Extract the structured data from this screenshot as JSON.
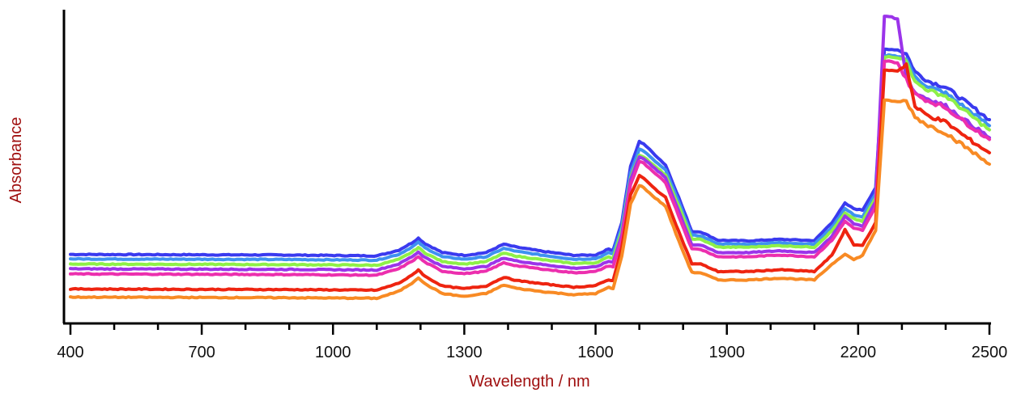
{
  "chart_data": {
    "type": "line",
    "title": "",
    "xlabel": "Wavelength / nm",
    "ylabel": "Absorbance",
    "label_color": "#a01010",
    "xlim": [
      400,
      2500
    ],
    "ylim": [
      0,
      1
    ],
    "x_ticks": [
      400,
      700,
      1000,
      1300,
      1600,
      1900,
      2200,
      2500
    ],
    "x_minor_step": 100,
    "y_tick_labels": false,
    "grid": false,
    "legend": "none",
    "x": [
      400,
      900,
      1100,
      1150,
      1180,
      1195,
      1210,
      1250,
      1300,
      1350,
      1390,
      1420,
      1480,
      1550,
      1600,
      1630,
      1640,
      1660,
      1680,
      1700,
      1710,
      1730,
      1760,
      1790,
      1820,
      1840,
      1880,
      1950,
      2020,
      2100,
      2140,
      2170,
      2190,
      2210,
      2240,
      2260,
      2270,
      2290,
      2310,
      2330,
      2360,
      2400,
      2450,
      2500
    ],
    "series": [
      {
        "color": "#3a3aef",
        "values": [
          0.208,
          0.206,
          0.203,
          0.222,
          0.246,
          0.262,
          0.244,
          0.214,
          0.205,
          0.214,
          0.242,
          0.232,
          0.218,
          0.205,
          0.206,
          0.226,
          0.222,
          0.315,
          0.5,
          0.583,
          0.576,
          0.547,
          0.505,
          0.397,
          0.284,
          0.283,
          0.255,
          0.253,
          0.258,
          0.254,
          0.314,
          0.378,
          0.36,
          0.355,
          0.43,
          0.89,
          0.89,
          0.888,
          0.875,
          0.815,
          0.784,
          0.764,
          0.71,
          0.656
        ]
      },
      {
        "color": "#3e92f0",
        "values": [
          0.193,
          0.191,
          0.189,
          0.208,
          0.232,
          0.248,
          0.23,
          0.2,
          0.192,
          0.2,
          0.228,
          0.218,
          0.205,
          0.192,
          0.194,
          0.213,
          0.21,
          0.3,
          0.48,
          0.558,
          0.552,
          0.525,
          0.488,
          0.382,
          0.271,
          0.27,
          0.243,
          0.242,
          0.247,
          0.242,
          0.298,
          0.36,
          0.34,
          0.332,
          0.41,
          0.866,
          0.87,
          0.866,
          0.86,
          0.796,
          0.766,
          0.744,
          0.69,
          0.636
        ]
      },
      {
        "color": "#8ef048",
        "values": [
          0.176,
          0.174,
          0.172,
          0.191,
          0.215,
          0.231,
          0.213,
          0.184,
          0.176,
          0.184,
          0.212,
          0.202,
          0.19,
          0.178,
          0.18,
          0.199,
          0.196,
          0.286,
          0.462,
          0.538,
          0.533,
          0.507,
          0.472,
          0.368,
          0.259,
          0.258,
          0.232,
          0.232,
          0.237,
          0.232,
          0.286,
          0.345,
          0.326,
          0.318,
          0.396,
          0.862,
          0.866,
          0.862,
          0.855,
          0.78,
          0.754,
          0.734,
          0.678,
          0.622
        ]
      },
      {
        "color": "#9b34ea",
        "values": [
          0.16,
          0.158,
          0.156,
          0.176,
          0.2,
          0.216,
          0.198,
          0.168,
          0.16,
          0.168,
          0.196,
          0.186,
          0.174,
          0.162,
          0.166,
          0.185,
          0.182,
          0.274,
          0.456,
          0.533,
          0.527,
          0.5,
          0.463,
          0.352,
          0.24,
          0.239,
          0.214,
          0.214,
          0.22,
          0.214,
          0.268,
          0.335,
          0.31,
          0.302,
          0.383,
          1.0,
          1.0,
          0.99,
          0.8,
          0.745,
          0.725,
          0.702,
          0.648,
          0.596
        ]
      },
      {
        "color": "#ec2fae",
        "values": [
          0.143,
          0.141,
          0.139,
          0.16,
          0.185,
          0.2,
          0.182,
          0.152,
          0.144,
          0.152,
          0.18,
          0.17,
          0.159,
          0.147,
          0.151,
          0.17,
          0.167,
          0.26,
          0.44,
          0.517,
          0.511,
          0.484,
          0.447,
          0.336,
          0.226,
          0.225,
          0.2,
          0.2,
          0.206,
          0.2,
          0.255,
          0.318,
          0.296,
          0.288,
          0.365,
          0.85,
          0.85,
          0.845,
          0.79,
          0.74,
          0.718,
          0.696,
          0.641,
          0.59
        ]
      },
      {
        "color": "#ee2410",
        "values": [
          0.093,
          0.091,
          0.089,
          0.112,
          0.138,
          0.157,
          0.135,
          0.103,
          0.094,
          0.103,
          0.132,
          0.121,
          0.11,
          0.099,
          0.104,
          0.124,
          0.12,
          0.232,
          0.405,
          0.47,
          0.461,
          0.433,
          0.397,
          0.284,
          0.177,
          0.176,
          0.151,
          0.151,
          0.157,
          0.151,
          0.205,
          0.29,
          0.24,
          0.238,
          0.313,
          0.82,
          0.82,
          0.818,
          0.84,
          0.698,
          0.669,
          0.648,
          0.594,
          0.546
        ]
      },
      {
        "color": "#f88a24",
        "values": [
          0.066,
          0.064,
          0.062,
          0.085,
          0.112,
          0.131,
          0.11,
          0.078,
          0.068,
          0.078,
          0.106,
          0.095,
          0.084,
          0.074,
          0.078,
          0.098,
          0.094,
          0.202,
          0.376,
          0.438,
          0.43,
          0.403,
          0.368,
          0.253,
          0.148,
          0.147,
          0.123,
          0.123,
          0.129,
          0.123,
          0.175,
          0.21,
          0.19,
          0.205,
          0.288,
          0.72,
          0.72,
          0.715,
          0.718,
          0.665,
          0.637,
          0.612,
          0.56,
          0.508
        ]
      }
    ]
  }
}
